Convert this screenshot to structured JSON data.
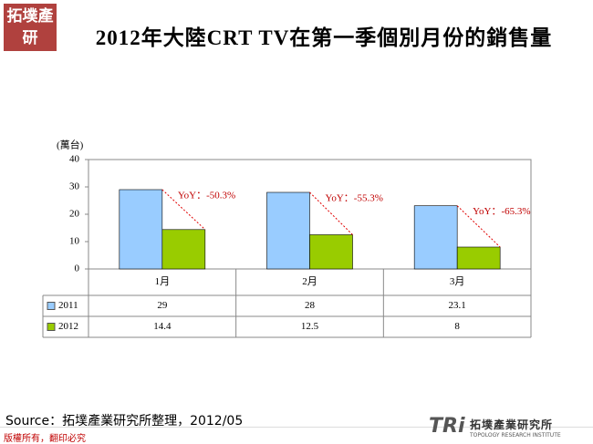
{
  "header": {
    "logo": "拓墣產研"
  },
  "chart_data": {
    "type": "bar",
    "title": "2012年大陸CRT TV在第一季個別月份的銷售量",
    "y_label": "(萬台)",
    "categories": [
      "1月",
      "2月",
      "3月"
    ],
    "series": [
      {
        "name": "2011",
        "color": "#99ccff",
        "values": [
          29,
          28,
          23.1
        ]
      },
      {
        "name": "2012",
        "color": "#99cc00",
        "values": [
          14.4,
          12.5,
          8
        ]
      }
    ],
    "annotations": [
      "YoY：-50.3%",
      "YoY：-55.3%",
      "YoY：-65.3%"
    ],
    "ylim": [
      0,
      40
    ],
    "yticks": [
      0,
      10,
      20,
      30,
      40
    ],
    "grid": false
  },
  "footer": {
    "source": "Source：拓墣產業研究所整理，2012/05",
    "copyright": "版權所有，翻印必究",
    "brand": "TRi",
    "brand_name": "拓墣產業研究所",
    "brand_en": "TOPOLOGY RESEARCH INSTITUTE"
  }
}
